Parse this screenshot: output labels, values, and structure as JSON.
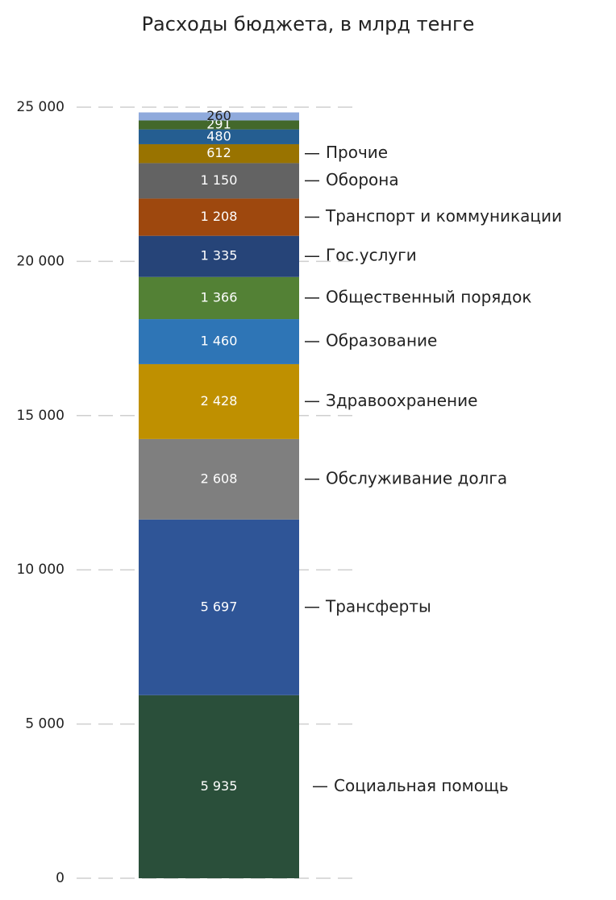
{
  "chart_data": {
    "type": "stacked-bar",
    "title": "Расходы бюджета, в млрд тенге",
    "ylim": [
      0,
      25000
    ],
    "yticks": [
      0,
      {
        "value": 5000,
        "label": "5 000"
      },
      {
        "value": 10000,
        "label": "10 000"
      },
      {
        "value": 15000,
        "label": "15 000"
      },
      {
        "value": 20000,
        "label": "20 000"
      },
      {
        "value": 25000,
        "label": "25 000"
      }
    ],
    "grid": true,
    "series": [
      {
        "name": "Социальная помощь",
        "color": "#2a4f3a",
        "label_color": "#ffffff",
        "values": [
          5935
        ],
        "value_labels": [
          "5 935"
        ]
      },
      {
        "name": "Трансферты",
        "color": "#2f5597",
        "label_color": "#ffffff",
        "values": [
          5697
        ],
        "value_labels": [
          "5 697"
        ]
      },
      {
        "name": "Обслуживание долга",
        "color": "#7f7f7f",
        "label_color": "#ffffff",
        "values": [
          2608
        ],
        "value_labels": [
          "2 608"
        ]
      },
      {
        "name": "Здравоохранение",
        "color": "#bf9000",
        "label_color": "#ffffff",
        "values": [
          2428
        ],
        "value_labels": [
          "2 428"
        ]
      },
      {
        "name": "Образование",
        "color": "#2e75b6",
        "label_color": "#ffffff",
        "values": [
          1460
        ],
        "value_labels": [
          "1 460"
        ]
      },
      {
        "name": "Общественный порядок",
        "color": "#538135",
        "label_color": "#ffffff",
        "values": [
          1366
        ],
        "value_labels": [
          "1 366"
        ]
      },
      {
        "name": "Гос.услуги",
        "color": "#264478",
        "label_color": "#ffffff",
        "values": [
          1335
        ],
        "value_labels": [
          "1 335"
        ]
      },
      {
        "name": "Транспорт и коммуникации",
        "color": "#9e480e",
        "label_color": "#ffffff",
        "values": [
          1208
        ],
        "value_labels": [
          "1 208"
        ]
      },
      {
        "name": "Оборона",
        "color": "#636363",
        "label_color": "#ffffff",
        "values": [
          1150
        ],
        "value_labels": [
          "1 150"
        ]
      },
      {
        "name": "Прочие",
        "color": "#997300",
        "label_color": "#ffffff",
        "values": [
          612
        ]
      },
      {
        "name": null,
        "color": "#255e91",
        "label_color": "#ffffff",
        "values": [
          480
        ]
      },
      {
        "name": null,
        "color": "#43682b",
        "label_color": "#ffffff",
        "values": [
          291
        ]
      },
      {
        "name": null,
        "color": "#8faadc",
        "label_color": "#222222",
        "values": [
          260
        ]
      }
    ]
  }
}
